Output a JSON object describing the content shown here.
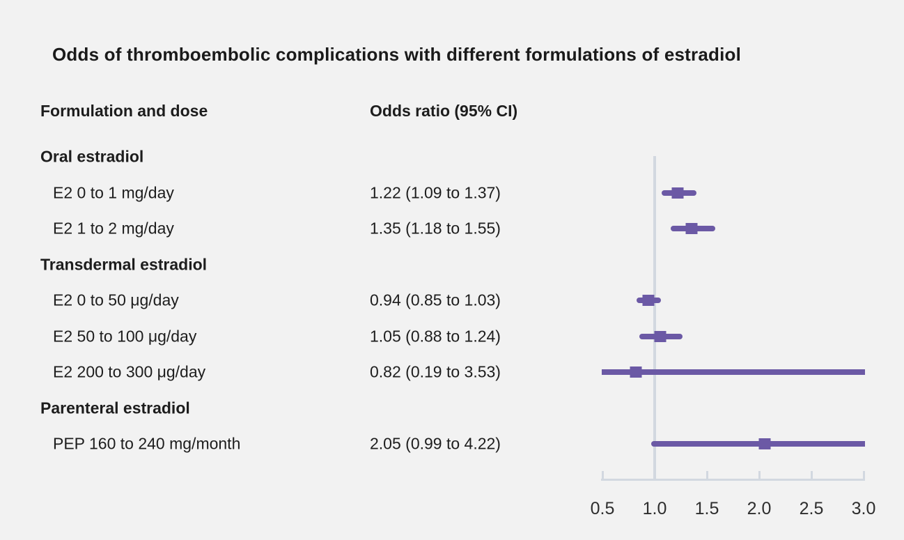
{
  "title": "Odds of thromboembolic complications with different formulations of estradiol",
  "columns": {
    "formulation": "Formulation and dose",
    "odds": "Odds ratio (95% CI)"
  },
  "colors": {
    "background": "#f2f2f2",
    "marker": "#6b59a5",
    "axis": "#d2d8e0",
    "text": "#1d1d1d"
  },
  "chart_data": {
    "type": "forest",
    "title": "Odds of thromboembolic complications with different formulations of estradiol",
    "xlabel": "",
    "legend": "none",
    "axis": {
      "min": 0.5,
      "max": 3.0,
      "ticks": [
        "0.5",
        "1.0",
        "1.5",
        "2.0",
        "2.5",
        "3.0"
      ],
      "tick_values": [
        0.5,
        1.0,
        1.5,
        2.0,
        2.5,
        3.0
      ],
      "reference_line": 1.0
    },
    "rows": [
      {
        "kind": "section",
        "label": "Oral estradiol"
      },
      {
        "kind": "item",
        "label": "E2 0 to 1 mg/day",
        "or_text": "1.22 (1.09 to 1.37)",
        "or": 1.22,
        "ci_low": 1.09,
        "ci_high": 1.37
      },
      {
        "kind": "item",
        "label": "E2 1 to 2 mg/day",
        "or_text": "1.35 (1.18 to 1.55)",
        "or": 1.35,
        "ci_low": 1.18,
        "ci_high": 1.55
      },
      {
        "kind": "section",
        "label": "Transdermal estradiol"
      },
      {
        "kind": "item",
        "label": "E2 0 to 50 μg/day",
        "or_text": "0.94 (0.85 to 1.03)",
        "or": 0.94,
        "ci_low": 0.85,
        "ci_high": 1.03
      },
      {
        "kind": "item",
        "label": "E2 50 to 100 μg/day",
        "or_text": "1.05 (0.88 to 1.24)",
        "or": 1.05,
        "ci_low": 0.88,
        "ci_high": 1.24
      },
      {
        "kind": "item",
        "label": "E2 200 to 300 μg/day",
        "or_text": "0.82 (0.19 to 3.53)",
        "or": 0.82,
        "ci_low": 0.19,
        "ci_high": 3.53
      },
      {
        "kind": "section",
        "label": "Parenteral estradiol"
      },
      {
        "kind": "item",
        "label": "PEP 160 to 240 mg/month",
        "or_text": "2.05 (0.99 to 4.22)",
        "or": 2.05,
        "ci_low": 0.99,
        "ci_high": 4.22
      }
    ]
  }
}
